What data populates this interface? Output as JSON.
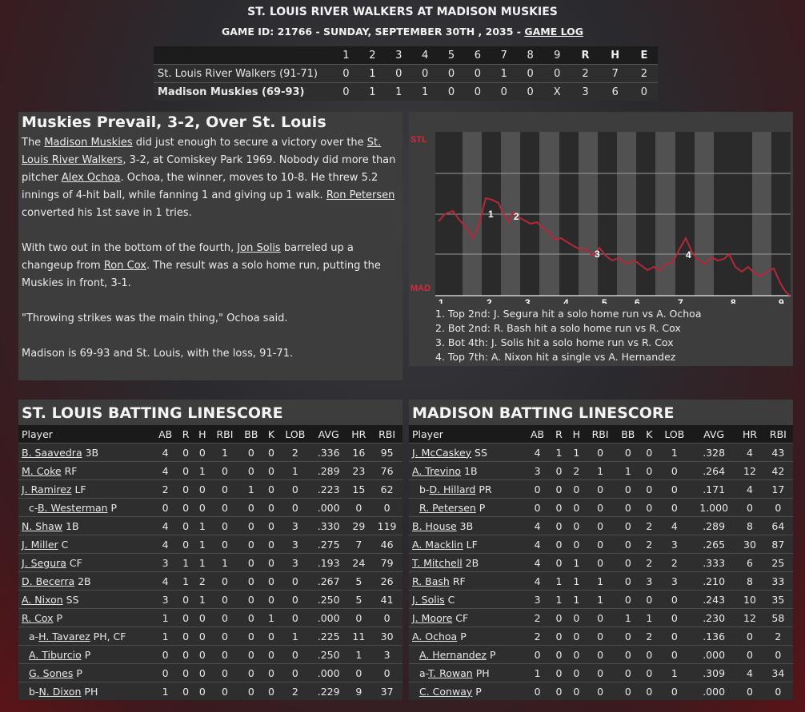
{
  "header": {
    "title": "ST. LOUIS RIVER WALKERS AT MADISON MUSKIES",
    "subtitle_prefix": "GAME ID: 21766 - SUNDAY, SEPTEMBER 30TH , 2035 - ",
    "game_log_link": "GAME LOG"
  },
  "linescore": {
    "headers": [
      "1",
      "2",
      "3",
      "4",
      "5",
      "6",
      "7",
      "8",
      "9",
      "R",
      "H",
      "E"
    ],
    "rows": [
      {
        "team": "St. Louis River Walkers (91-71)",
        "cells": [
          "0",
          "1",
          "0",
          "0",
          "0",
          "0",
          "1",
          "0",
          "0",
          "2",
          "7",
          "2"
        ]
      },
      {
        "team": "Madison Muskies (69-93)",
        "cells": [
          "0",
          "1",
          "1",
          "1",
          "0",
          "0",
          "0",
          "0",
          "X",
          "3",
          "6",
          "0"
        ]
      }
    ]
  },
  "story": {
    "headline": "Muskies Prevail, 3-2, Over St. Louis",
    "p1": [
      {
        "t": "The "
      },
      {
        "t": "Madison Muskies",
        "link": true
      },
      {
        "t": " did just enough to secure a victory over the "
      },
      {
        "t": "St. Louis River Walkers",
        "link": true
      },
      {
        "t": ", 3-2, at Comiskey Park 1969. Nobody did more than pitcher "
      },
      {
        "t": "Alex Ochoa",
        "link": true
      },
      {
        "t": ". Ochoa, the winner, moves to 10-8. He threw 5.2 innings of 4-hit ball, while fanning 1 and giving up 1 walk. "
      },
      {
        "t": "Ron Petersen",
        "link": true
      },
      {
        "t": " converted his 1st save in 1 tries."
      }
    ],
    "p2": [
      {
        "t": "With two out in the bottom of the fourth, "
      },
      {
        "t": "Jon Solis",
        "link": true
      },
      {
        "t": " barreled up a changeup from "
      },
      {
        "t": "Ron Cox",
        "link": true
      },
      {
        "t": ". The result was a solo home run, putting the Muskies in front, 3-1."
      }
    ],
    "p3": "\"Throwing strikes was the main thing,\" Ochoa said.",
    "p4": "Madison is 69-93 and St. Louis, with the loss, 91-71."
  },
  "win_prob": {
    "top_label": "STL",
    "bottom_label": "MAD",
    "innings": [
      "1",
      "2",
      "3",
      "4",
      "5",
      "6",
      "7",
      "8",
      "9"
    ],
    "markers": [
      "1",
      "2",
      "3",
      "4"
    ],
    "notes": [
      "1. Top 2nd: J. Segura hit a solo home run vs A. Ochoa",
      "2. Bot 2nd: R. Bash hit a solo home run vs R. Cox",
      "3. Bot 4th: J. Solis hit a solo home run vs R. Cox",
      "4. Top 7th: A. Nixon hit a single vs A. Hernandez"
    ],
    "line_color": "#b5283a",
    "label_color": "#d8283c"
  },
  "batting_columns": [
    "Player",
    "AB",
    "R",
    "H",
    "RBI",
    "BB",
    "K",
    "LOB",
    "AVG",
    "HR",
    "RBI"
  ],
  "stl_batting": {
    "title": "ST. LOUIS BATTING LINESCORE",
    "rows": [
      {
        "pre": "",
        "name": "B. Saavedra",
        "pos": " 3B",
        "s": [
          "4",
          "0",
          "0",
          "1",
          "0",
          "0",
          "2",
          ".336",
          "16",
          "95"
        ]
      },
      {
        "pre": "",
        "name": "M. Coke",
        "pos": " RF",
        "s": [
          "4",
          "0",
          "1",
          "0",
          "0",
          "0",
          "1",
          ".289",
          "23",
          "76"
        ]
      },
      {
        "pre": "",
        "name": "J. Ramirez",
        "pos": " LF",
        "s": [
          "2",
          "0",
          "0",
          "0",
          "1",
          "0",
          "0",
          ".223",
          "15",
          "62"
        ]
      },
      {
        "pre": "c-",
        "name": "B. Westerman",
        "pos": " P",
        "s": [
          "0",
          "0",
          "0",
          "0",
          "0",
          "0",
          "0",
          ".000",
          "0",
          "0"
        ]
      },
      {
        "pre": "",
        "name": "N. Shaw",
        "pos": " 1B",
        "s": [
          "4",
          "0",
          "1",
          "0",
          "0",
          "0",
          "3",
          ".330",
          "29",
          "119"
        ]
      },
      {
        "pre": "",
        "name": "J. Miller",
        "pos": " C",
        "s": [
          "4",
          "0",
          "1",
          "0",
          "0",
          "0",
          "3",
          ".275",
          "7",
          "46"
        ]
      },
      {
        "pre": "",
        "name": "J. Segura",
        "pos": " CF",
        "s": [
          "3",
          "1",
          "1",
          "1",
          "0",
          "0",
          "3",
          ".193",
          "24",
          "79"
        ]
      },
      {
        "pre": "",
        "name": "D. Becerra",
        "pos": " 2B",
        "s": [
          "4",
          "1",
          "2",
          "0",
          "0",
          "0",
          "0",
          ".267",
          "5",
          "26"
        ]
      },
      {
        "pre": "",
        "name": "A. Nixon",
        "pos": " SS",
        "s": [
          "3",
          "0",
          "1",
          "0",
          "0",
          "0",
          "0",
          ".250",
          "5",
          "41"
        ]
      },
      {
        "pre": "",
        "name": "R. Cox",
        "pos": " P",
        "s": [
          "1",
          "0",
          "0",
          "0",
          "0",
          "1",
          "0",
          ".000",
          "0",
          "0"
        ]
      },
      {
        "pre": "a-",
        "name": "H. Tavarez",
        "pos": " PH, CF",
        "s": [
          "1",
          "0",
          "0",
          "0",
          "0",
          "0",
          "1",
          ".225",
          "11",
          "30"
        ]
      },
      {
        "pre": "",
        "name": "A. Tiburcio",
        "pos": " P",
        "s": [
          "0",
          "0",
          "0",
          "0",
          "0",
          "0",
          "0",
          ".250",
          "1",
          "3"
        ],
        "sub": true
      },
      {
        "pre": "",
        "name": "G. Sones",
        "pos": " P",
        "s": [
          "0",
          "0",
          "0",
          "0",
          "0",
          "0",
          "0",
          ".000",
          "0",
          "0"
        ],
        "sub": true
      },
      {
        "pre": "b-",
        "name": "N. Dixon",
        "pos": " PH",
        "s": [
          "1",
          "0",
          "0",
          "0",
          "0",
          "0",
          "2",
          ".229",
          "9",
          "37"
        ]
      }
    ]
  },
  "mad_batting": {
    "title": "MADISON BATTING LINESCORE",
    "rows": [
      {
        "pre": "",
        "name": "J. McCaskey",
        "pos": " SS",
        "s": [
          "4",
          "1",
          "1",
          "0",
          "0",
          "0",
          "1",
          ".328",
          "4",
          "43"
        ]
      },
      {
        "pre": "",
        "name": "A. Trevino",
        "pos": " 1B",
        "s": [
          "3",
          "0",
          "2",
          "1",
          "1",
          "0",
          "0",
          ".264",
          "12",
          "42"
        ]
      },
      {
        "pre": "b-",
        "name": "D. Hillard",
        "pos": " PR",
        "s": [
          "0",
          "0",
          "0",
          "0",
          "0",
          "0",
          "0",
          ".171",
          "4",
          "17"
        ]
      },
      {
        "pre": "",
        "name": "R. Petersen",
        "pos": " P",
        "s": [
          "0",
          "0",
          "0",
          "0",
          "0",
          "0",
          "0",
          "1.000",
          "0",
          "0"
        ],
        "sub": true
      },
      {
        "pre": "",
        "name": "B. House",
        "pos": " 3B",
        "s": [
          "4",
          "0",
          "0",
          "0",
          "0",
          "2",
          "4",
          ".289",
          "8",
          "64"
        ]
      },
      {
        "pre": "",
        "name": "A. Macklin",
        "pos": " LF",
        "s": [
          "4",
          "0",
          "0",
          "0",
          "0",
          "2",
          "3",
          ".265",
          "30",
          "87"
        ]
      },
      {
        "pre": "",
        "name": "T. Mitchell",
        "pos": " 2B",
        "s": [
          "4",
          "0",
          "1",
          "0",
          "0",
          "2",
          "2",
          ".333",
          "6",
          "25"
        ]
      },
      {
        "pre": "",
        "name": "R. Bash",
        "pos": " RF",
        "s": [
          "4",
          "1",
          "1",
          "1",
          "0",
          "3",
          "3",
          ".210",
          "8",
          "33"
        ]
      },
      {
        "pre": "",
        "name": "J. Solis",
        "pos": " C",
        "s": [
          "3",
          "1",
          "1",
          "1",
          "0",
          "0",
          "0",
          ".243",
          "10",
          "35"
        ]
      },
      {
        "pre": "",
        "name": "J. Moore",
        "pos": " CF",
        "s": [
          "2",
          "0",
          "0",
          "0",
          "1",
          "1",
          "0",
          ".230",
          "12",
          "58"
        ]
      },
      {
        "pre": "",
        "name": "A. Ochoa",
        "pos": " P",
        "s": [
          "2",
          "0",
          "0",
          "0",
          "0",
          "2",
          "0",
          ".136",
          "0",
          "2"
        ]
      },
      {
        "pre": "",
        "name": "A. Hernandez",
        "pos": " P",
        "s": [
          "0",
          "0",
          "0",
          "0",
          "0",
          "0",
          "0",
          ".000",
          "0",
          "0"
        ],
        "sub": true
      },
      {
        "pre": "a-",
        "name": "T. Rowan",
        "pos": " PH",
        "s": [
          "1",
          "0",
          "0",
          "0",
          "0",
          "0",
          "1",
          ".309",
          "4",
          "34"
        ]
      },
      {
        "pre": "",
        "name": "C. Conway",
        "pos": " P",
        "s": [
          "0",
          "0",
          "0",
          "0",
          "0",
          "0",
          "0",
          ".000",
          "0",
          "0"
        ],
        "sub": true
      }
    ]
  }
}
